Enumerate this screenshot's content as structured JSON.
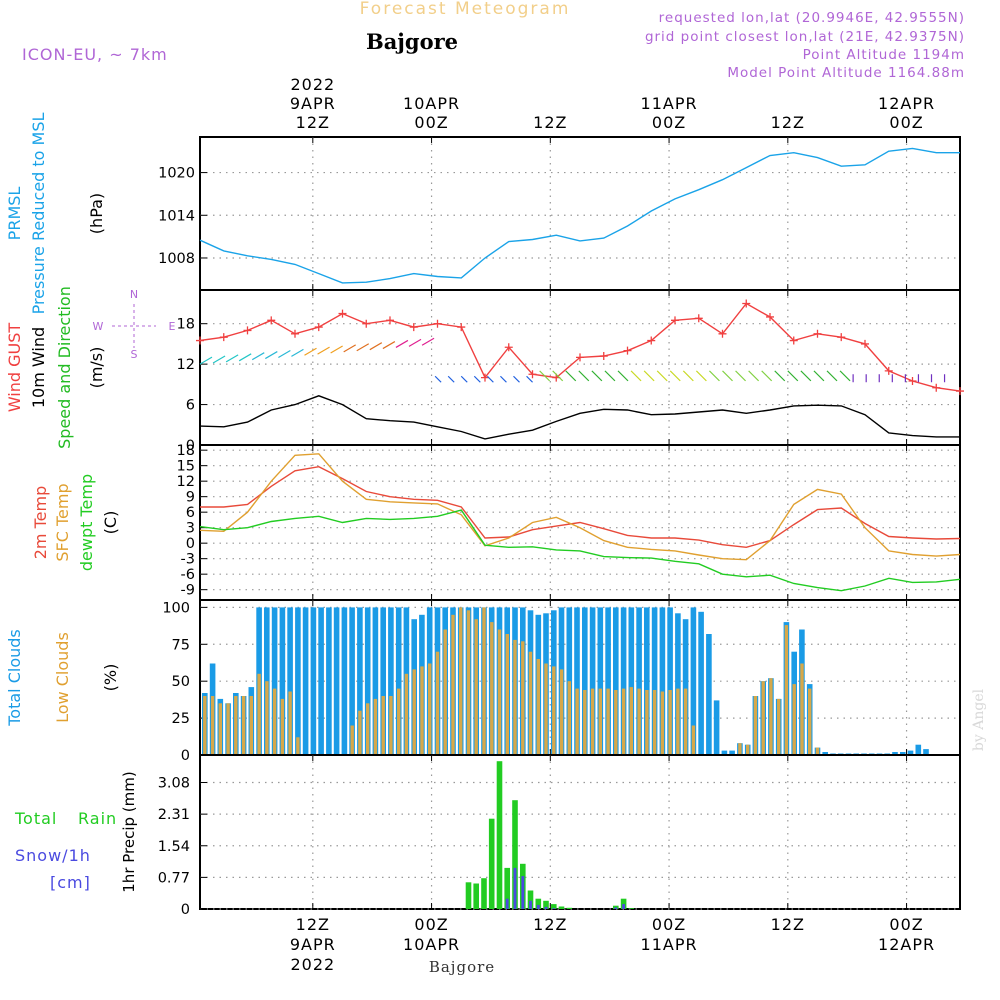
{
  "header": {
    "app_title": "Forecast Meteogram",
    "location": "Bajgore",
    "model": "ICON-EU, ~ 7km",
    "requested": "requested lon,lat (20.9946E, 42.9555N)",
    "grid_point": "grid point closest lon,lat (21E, 42.9375N)",
    "point_altitude": "Point Altitude 1194m",
    "model_point_altitude": "Model Point Altitude 1164.88m",
    "footer_location": "Bajgore",
    "watermark": "by Angel"
  },
  "colors": {
    "pressure": "#1aa3e8",
    "gust": "#f04040",
    "wind10": "#000000",
    "direction": "#22bb22",
    "t2m": "#e84a3a",
    "sfc": "#e0a030",
    "dewpt": "#22cc22",
    "total_clouds": "#1a9be6",
    "low_clouds": "#d6a84a",
    "rain": "#22cc22",
    "snow": "#4a4ae0",
    "label_purple": "#b066d6"
  },
  "chart_data": [
    {
      "type": "line",
      "id": "pressure",
      "ylabel_lines": [
        "PRMSL",
        "Pressure Reduced to MSL"
      ],
      "unit": "(hPa)",
      "ylim": [
        1003.5,
        1025
      ],
      "yticks": [
        1008,
        1014,
        1020
      ],
      "x_hours": [
        0,
        2,
        4,
        6,
        8,
        10,
        12,
        14,
        16,
        18,
        20,
        22,
        24,
        26,
        28,
        30,
        32,
        34,
        36,
        38,
        40,
        42,
        44,
        46,
        48,
        50,
        52,
        54,
        56,
        58,
        60,
        62,
        64
      ],
      "series": [
        {
          "name": "PRMSL",
          "values": [
            1010.5,
            1009.0,
            1008.3,
            1007.8,
            1007.1,
            1005.8,
            1004.5,
            1004.6,
            1005.1,
            1005.8,
            1005.4,
            1005.2,
            1008.0,
            1010.3,
            1010.6,
            1011.2,
            1010.4,
            1010.8,
            1012.5,
            1014.6,
            1016.3,
            1017.6,
            1019.0,
            1020.7,
            1022.4,
            1022.8,
            1022.1,
            1020.9,
            1021.1,
            1023.0,
            1023.4,
            1022.8,
            1022.8
          ]
        }
      ]
    },
    {
      "type": "line",
      "id": "wind",
      "ylabel_lines": [
        "Wind GUST",
        "10m Wind",
        "Speed and Direction"
      ],
      "unit": "(m/s)",
      "compass": [
        "N",
        "W",
        "E",
        "S"
      ],
      "ylim": [
        0,
        23
      ],
      "yticks": [
        0,
        6,
        12,
        18
      ],
      "x_hours": [
        0,
        2,
        4,
        6,
        8,
        10,
        12,
        14,
        16,
        18,
        20,
        22,
        24,
        26,
        28,
        30,
        32,
        34,
        36,
        38,
        40,
        42,
        44,
        46,
        48,
        50,
        52,
        54,
        56,
        58,
        60,
        62,
        64
      ],
      "series": [
        {
          "name": "Wind GUST",
          "values": [
            15.5,
            16.0,
            17.0,
            18.5,
            16.5,
            17.5,
            19.5,
            18.0,
            18.5,
            17.5,
            18.0,
            17.5,
            10.0,
            14.5,
            10.5,
            10.0,
            13.0,
            13.2,
            14.0,
            15.5,
            18.5,
            18.8,
            16.5,
            21.0,
            19.0,
            15.5,
            16.5,
            16.0,
            15.0,
            11.0,
            9.5,
            8.5,
            8.0
          ]
        },
        {
          "name": "10m Wind",
          "values": [
            2.8,
            2.7,
            3.4,
            5.2,
            6.0,
            7.3,
            6.0,
            3.9,
            3.6,
            3.4,
            2.7,
            2.0,
            0.9,
            1.6,
            2.2,
            3.5,
            4.7,
            5.3,
            5.2,
            4.5,
            4.6,
            4.9,
            5.2,
            4.7,
            5.2,
            5.8,
            5.9,
            5.8,
            4.5,
            1.8,
            1.4,
            1.2,
            1.2
          ]
        }
      ],
      "direction_arrow_rows": [
        11,
        9.5
      ]
    },
    {
      "type": "line",
      "id": "temperature",
      "ylabel_lines": [
        "2m Temp",
        "SFC Temp",
        "dewpt Temp"
      ],
      "unit": "(C)",
      "ylim": [
        -11,
        19
      ],
      "yticks": [
        -9,
        -6,
        -3,
        0,
        3,
        6,
        9,
        12,
        15,
        18
      ],
      "x_hours": [
        0,
        2,
        4,
        6,
        8,
        10,
        12,
        14,
        16,
        18,
        20,
        22,
        24,
        26,
        28,
        30,
        32,
        34,
        36,
        38,
        40,
        42,
        44,
        46,
        48,
        50,
        52,
        54,
        56,
        58,
        60,
        62,
        64
      ],
      "series": [
        {
          "name": "2m Temp",
          "values": [
            7.0,
            7.0,
            7.5,
            11.0,
            14.0,
            14.8,
            12.5,
            10.0,
            9.0,
            8.5,
            8.3,
            7.0,
            1.0,
            1.2,
            2.6,
            3.3,
            4.0,
            2.8,
            1.5,
            1.0,
            1.0,
            0.6,
            -0.3,
            -0.8,
            0.5,
            3.6,
            6.5,
            6.8,
            3.8,
            1.3,
            1.0,
            0.8,
            0.9
          ]
        },
        {
          "name": "SFC Temp",
          "values": [
            2.5,
            2.3,
            6.0,
            12.0,
            17.0,
            17.3,
            12.0,
            8.5,
            8.0,
            7.8,
            7.6,
            5.5,
            -0.5,
            1.0,
            4.0,
            5.0,
            3.0,
            0.5,
            -0.8,
            -1.2,
            -1.5,
            -2.3,
            -3.0,
            -3.2,
            0.5,
            7.5,
            10.4,
            9.5,
            3.0,
            -1.5,
            -2.2,
            -2.5,
            -2.2
          ]
        },
        {
          "name": "dewpt Temp",
          "values": [
            3.2,
            2.6,
            3.0,
            4.2,
            4.8,
            5.2,
            4.0,
            4.8,
            4.6,
            4.8,
            5.2,
            6.4,
            -0.4,
            -0.8,
            -0.7,
            -1.3,
            -1.5,
            -2.6,
            -2.8,
            -2.9,
            -3.5,
            -4.0,
            -6.0,
            -6.5,
            -6.2,
            -7.8,
            -8.6,
            -9.2,
            -8.3,
            -6.8,
            -7.6,
            -7.5,
            -7.0
          ]
        }
      ]
    },
    {
      "type": "bar",
      "id": "clouds",
      "ylabel_lines": [
        "Total Clouds",
        "Low Clouds"
      ],
      "unit": "(%)",
      "ylim": [
        0,
        105
      ],
      "yticks": [
        0,
        25,
        50,
        75,
        100
      ],
      "x_start": 0,
      "x_step": 1,
      "series": [
        {
          "name": "Total Clouds",
          "values": [
            42,
            62,
            38,
            35,
            42,
            40,
            46,
            100,
            100,
            100,
            100,
            100,
            100,
            100,
            100,
            100,
            100,
            100,
            100,
            100,
            100,
            100,
            100,
            100,
            100,
            100,
            100,
            92,
            95,
            100,
            100,
            100,
            100,
            100,
            100,
            100,
            100,
            100,
            100,
            100,
            100,
            100,
            98,
            95,
            96,
            98,
            100,
            100,
            100,
            100,
            100,
            100,
            100,
            100,
            100,
            100,
            100,
            100,
            100,
            100,
            100,
            96,
            92,
            100,
            97,
            82,
            37,
            3,
            3,
            8,
            7,
            40,
            50,
            52,
            38,
            90,
            70,
            85,
            48,
            5,
            2,
            1,
            1,
            1,
            1,
            1,
            1,
            1,
            1,
            2,
            2,
            3,
            7,
            4,
            0,
            0,
            0,
            0
          ]
        },
        {
          "name": "Low Clouds",
          "values": [
            40,
            40,
            35,
            35,
            40,
            40,
            40,
            55,
            50,
            45,
            38,
            43,
            12,
            0,
            0,
            0,
            0,
            0,
            0,
            20,
            30,
            35,
            38,
            40,
            40,
            45,
            55,
            58,
            60,
            62,
            70,
            85,
            95,
            100,
            98,
            92,
            100,
            90,
            85,
            82,
            78,
            77,
            70,
            65,
            62,
            60,
            58,
            50,
            45,
            44,
            45,
            45,
            45,
            44,
            45,
            46,
            45,
            44,
            44,
            43,
            44,
            45,
            45,
            20,
            0,
            0,
            0,
            0,
            0,
            8,
            7,
            40,
            50,
            52,
            38,
            88,
            48,
            62,
            45,
            5,
            0,
            0,
            0,
            0,
            0,
            0,
            0,
            0,
            0,
            0,
            0,
            0,
            0,
            0,
            0,
            0,
            0,
            0
          ]
        }
      ]
    },
    {
      "type": "bar",
      "id": "precip",
      "ylabel_lines": [
        "1hr Precip (mm)"
      ],
      "legend": [
        "Total",
        "Rain",
        "Snow/1h",
        "[cm]"
      ],
      "ylim": [
        0,
        3.75
      ],
      "yticks": [
        0,
        0.77,
        1.54,
        2.31,
        3.08
      ],
      "ytick_labels": [
        "0",
        "0.77",
        "1.54",
        "2.31",
        "3.08"
      ],
      "x_start": 0,
      "x_step": 1,
      "series": [
        {
          "name": "Total Rain",
          "values": [
            0,
            0,
            0,
            0,
            0,
            0,
            0,
            0,
            0,
            0,
            0,
            0,
            0,
            0,
            0,
            0,
            0,
            0,
            0,
            0,
            0,
            0,
            0,
            0,
            0,
            0,
            0,
            0,
            0,
            0,
            0,
            0,
            0,
            0,
            0.65,
            0.62,
            0.75,
            2.2,
            3.6,
            1.0,
            2.65,
            1.1,
            0.45,
            0.25,
            0.2,
            0.12,
            0.06,
            0.03,
            0.0,
            0.0,
            0.0,
            0.0,
            0.0,
            0.08,
            0.25,
            0.02,
            0,
            0,
            0,
            0,
            0,
            0,
            0,
            0,
            0,
            0,
            0,
            0,
            0,
            0,
            0,
            0,
            0,
            0,
            0,
            0,
            0,
            0,
            0,
            0,
            0,
            0,
            0,
            0,
            0,
            0,
            0,
            0,
            0,
            0,
            0,
            0,
            0,
            0,
            0,
            0,
            0,
            0
          ]
        },
        {
          "name": "Snow/1h",
          "values": [
            0,
            0,
            0,
            0,
            0,
            0,
            0,
            0,
            0,
            0,
            0,
            0,
            0,
            0,
            0,
            0,
            0,
            0,
            0,
            0,
            0,
            0,
            0,
            0,
            0,
            0,
            0,
            0,
            0,
            0,
            0,
            0,
            0,
            0,
            0,
            0,
            0,
            0,
            0,
            0.25,
            1.0,
            0.8,
            0.2,
            0.1,
            0.05,
            0.02,
            0,
            0,
            0,
            0,
            0,
            0,
            0,
            0.04,
            0.12,
            0,
            0,
            0,
            0,
            0,
            0,
            0,
            0,
            0,
            0,
            0,
            0,
            0,
            0,
            0,
            0,
            0,
            0,
            0,
            0,
            0,
            0,
            0,
            0,
            0,
            0,
            0,
            0,
            0,
            0,
            0,
            0,
            0,
            0,
            0,
            0,
            0,
            0,
            0,
            0,
            0,
            0,
            0
          ]
        }
      ]
    }
  ],
  "time_axis": {
    "hours_span": 64,
    "ticks": [
      {
        "hour": 9.5,
        "top": [
          "2022",
          "9APR",
          "12Z"
        ],
        "bottom": [
          "12Z",
          "9APR",
          "2022"
        ]
      },
      {
        "hour": 19.5,
        "top": [
          "10APR",
          "00Z"
        ],
        "bottom": [
          "00Z",
          "10APR"
        ]
      },
      {
        "hour": 29.5,
        "top": [
          "12Z"
        ],
        "bottom": [
          "12Z"
        ]
      },
      {
        "hour": 39.5,
        "top": [
          "11APR",
          "00Z"
        ],
        "bottom": [
          "00Z",
          "11APR"
        ]
      },
      {
        "hour": 49.5,
        "top": [
          "12Z"
        ],
        "bottom": [
          "12Z"
        ]
      },
      {
        "hour": 59.5,
        "top": [
          "12APR",
          "00Z"
        ],
        "bottom": [
          "00Z",
          "12APR"
        ]
      }
    ]
  }
}
